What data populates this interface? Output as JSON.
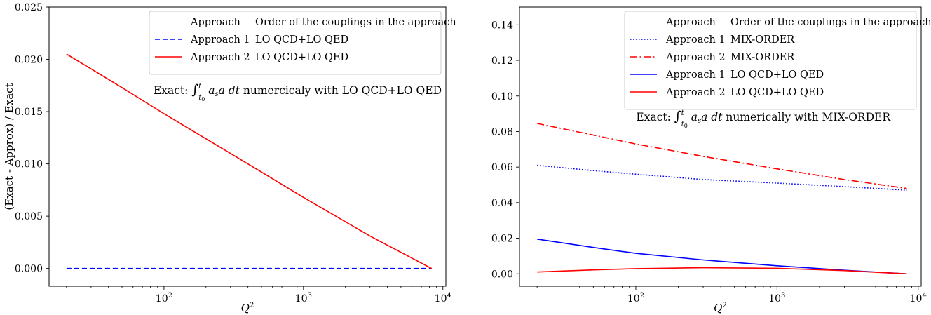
{
  "chart_data": [
    {
      "type": "line",
      "xscale": "log",
      "xlabel_base": "Q",
      "xlabel_sup": "2",
      "ylabel": "(Exact - Approx) / Exact",
      "xlim": [
        15,
        10500
      ],
      "ylim": [
        -0.0017,
        0.025
      ],
      "x_ticks": [
        100,
        1000,
        10000
      ],
      "x_tick_base": "10",
      "x_tick_exps": [
        "2",
        "3",
        "4"
      ],
      "y_ticks": [
        0,
        0.005,
        0.01,
        0.015,
        0.02,
        0.025
      ],
      "y_tick_labels": [
        "0.000",
        "0.005",
        "0.010",
        "0.015",
        "0.020",
        "0.025"
      ],
      "legend": {
        "position": "top-right",
        "header_left": "Approach",
        "header_right": "Order of the couplings in the approach"
      },
      "annotation": {
        "prefix": "Exact: ",
        "lower_limit_var": "t",
        "lower_limit_sub": "0",
        "upper_limit": "t",
        "integrand_a": "a",
        "integrand_sub": "s",
        "integrand_b": "a dt",
        "suffix": " numercicaly with LO QCD+LO QED"
      },
      "series": [
        {
          "name": "Approach 1",
          "order": "LO QCD+LO QED",
          "color": "#0000ff",
          "style": "dashed",
          "x": [
            20,
            50,
            100,
            300,
            1000,
            3000,
            8300
          ],
          "y": [
            0,
            0,
            0,
            0,
            0,
            0,
            0
          ]
        },
        {
          "name": "Approach 2",
          "order": "LO QCD+LO QED",
          "color": "#ff0000",
          "style": "solid",
          "x": [
            20,
            50,
            100,
            300,
            1000,
            3000,
            8300
          ],
          "y": [
            0.0205,
            0.0173,
            0.0148,
            0.011,
            0.0068,
            0.0031,
            0.0
          ]
        }
      ]
    },
    {
      "type": "line",
      "xscale": "log",
      "xlabel_base": "Q",
      "xlabel_sup": "2",
      "ylabel": "",
      "xlim": [
        15,
        10500
      ],
      "ylim": [
        -0.007,
        0.15
      ],
      "x_ticks": [
        100,
        1000,
        10000
      ],
      "x_tick_base": "10",
      "x_tick_exps": [
        "2",
        "3",
        "4"
      ],
      "y_ticks": [
        0,
        0.02,
        0.04,
        0.06,
        0.08,
        0.1,
        0.12,
        0.14
      ],
      "y_tick_labels": [
        "0.00",
        "0.02",
        "0.04",
        "0.06",
        "0.08",
        "0.10",
        "0.12",
        "0.14"
      ],
      "legend": {
        "position": "top-right",
        "header_left": "Approach",
        "header_right": "Order of the couplings in the approach"
      },
      "annotation": {
        "prefix": "Exact: ",
        "lower_limit_var": "t",
        "lower_limit_sub": "0",
        "upper_limit": "t",
        "integrand_a": "a",
        "integrand_sub": "s",
        "integrand_b": "a dt",
        "suffix": " numerically with MIX-ORDER"
      },
      "series": [
        {
          "name": "Approach 1",
          "order": "MIX-ORDER",
          "color": "#0000ff",
          "style": "dotted",
          "x": [
            20,
            50,
            100,
            300,
            1000,
            3000,
            8300
          ],
          "y": [
            0.061,
            0.058,
            0.056,
            0.053,
            0.051,
            0.049,
            0.047
          ]
        },
        {
          "name": "Approach 2",
          "order": "MIX-ORDER",
          "color": "#ff0000",
          "style": "dashdot",
          "x": [
            20,
            50,
            100,
            300,
            1000,
            3000,
            8300
          ],
          "y": [
            0.0845,
            0.078,
            0.073,
            0.066,
            0.059,
            0.053,
            0.048
          ]
        },
        {
          "name": "Approach 1",
          "order": "LO QCD+LO QED",
          "color": "#0000ff",
          "style": "solid",
          "x": [
            20,
            50,
            100,
            300,
            1000,
            3000,
            8300
          ],
          "y": [
            0.0195,
            0.0148,
            0.0115,
            0.0078,
            0.0045,
            0.002,
            0.0
          ]
        },
        {
          "name": "Approach 2",
          "order": "LO QCD+LO QED",
          "color": "#ff0000",
          "style": "solid",
          "x": [
            20,
            50,
            100,
            300,
            1000,
            3000,
            8300
          ],
          "y": [
            0.001,
            0.0022,
            0.0029,
            0.0034,
            0.0031,
            0.0018,
            0.0
          ]
        }
      ]
    }
  ]
}
